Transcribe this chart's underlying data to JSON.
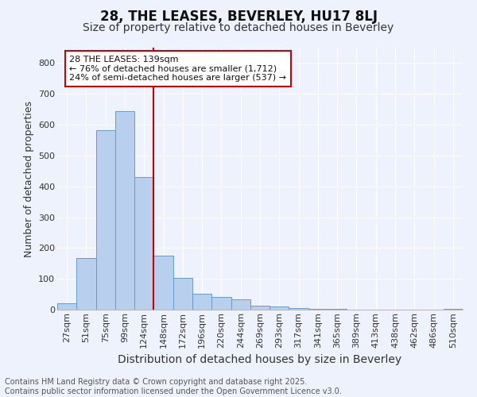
{
  "title": "28, THE LEASES, BEVERLEY, HU17 8LJ",
  "subtitle": "Size of property relative to detached houses in Beverley",
  "xlabel": "Distribution of detached houses by size in Beverley",
  "ylabel": "Number of detached properties",
  "categories": [
    "27sqm",
    "51sqm",
    "75sqm",
    "99sqm",
    "124sqm",
    "148sqm",
    "172sqm",
    "196sqm",
    "220sqm",
    "244sqm",
    "269sqm",
    "293sqm",
    "317sqm",
    "341sqm",
    "365sqm",
    "389sqm",
    "413sqm",
    "438sqm",
    "462sqm",
    "486sqm",
    "510sqm"
  ],
  "values": [
    20,
    168,
    583,
    645,
    430,
    174,
    102,
    52,
    40,
    33,
    12,
    10,
    5,
    3,
    2,
    1,
    1,
    0,
    0,
    0,
    2
  ],
  "bar_color": "#b8d0ee",
  "bar_edge_color": "#6699cc",
  "background_color": "#eef2fc",
  "grid_color": "#ffffff",
  "vline_x_index": 5,
  "vline_color": "#cc0000",
  "annotation_title": "28 THE LEASES: 139sqm",
  "annotation_line1": "← 76% of detached houses are smaller (1,712)",
  "annotation_line2": "24% of semi-detached houses are larger (537) →",
  "annotation_box_color": "#ffffff",
  "annotation_box_edge": "#cc0000",
  "ylim": [
    0,
    850
  ],
  "yticks": [
    0,
    100,
    200,
    300,
    400,
    500,
    600,
    700,
    800
  ],
  "footer_line1": "Contains HM Land Registry data © Crown copyright and database right 2025.",
  "footer_line2": "Contains public sector information licensed under the Open Government Licence v3.0.",
  "title_fontsize": 12,
  "subtitle_fontsize": 10,
  "xlabel_fontsize": 10,
  "ylabel_fontsize": 9,
  "tick_fontsize": 8,
  "annotation_fontsize": 8,
  "footer_fontsize": 7
}
